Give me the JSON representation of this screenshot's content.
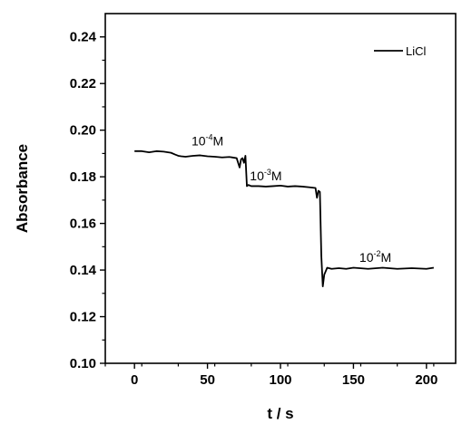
{
  "chart_data": {
    "type": "line",
    "title": "",
    "xlabel": "t / s",
    "ylabel": "Absorbance",
    "xlim": [
      -20,
      220
    ],
    "ylim": [
      0.1,
      0.25
    ],
    "xticks": [
      0,
      50,
      100,
      150,
      200
    ],
    "xtick_labels": [
      "0",
      "50",
      "100",
      "150",
      "200"
    ],
    "yticks": [
      0.1,
      0.12,
      0.14,
      0.16,
      0.18,
      0.2,
      0.22,
      0.24
    ],
    "ytick_labels": [
      "0.10",
      "0.12",
      "0.14",
      "0.16",
      "0.18",
      "0.20",
      "0.22",
      "0.24"
    ],
    "grid": false,
    "legend_position": "top-right",
    "series": [
      {
        "name": "LiCl",
        "color": "#000000",
        "x": [
          0,
          5,
          10,
          15,
          20,
          25,
          28,
          30,
          32,
          35,
          40,
          45,
          50,
          55,
          60,
          65,
          70,
          72,
          73,
          74,
          75,
          76,
          77,
          78,
          80,
          85,
          90,
          95,
          100,
          105,
          110,
          115,
          120,
          124,
          125,
          126,
          127,
          128,
          129,
          130,
          132,
          135,
          140,
          145,
          150,
          160,
          170,
          180,
          190,
          200,
          205
        ],
        "y": [
          0.191,
          0.191,
          0.1905,
          0.191,
          0.1908,
          0.1903,
          0.1895,
          0.189,
          0.1888,
          0.1886,
          0.189,
          0.1892,
          0.1888,
          0.1886,
          0.1883,
          0.1885,
          0.188,
          0.184,
          0.1875,
          0.188,
          0.186,
          0.189,
          0.176,
          0.1765,
          0.176,
          0.176,
          0.1758,
          0.176,
          0.1762,
          0.1758,
          0.176,
          0.1758,
          0.1755,
          0.1752,
          0.171,
          0.174,
          0.1735,
          0.146,
          0.133,
          0.138,
          0.141,
          0.1405,
          0.1408,
          0.1405,
          0.141,
          0.1405,
          0.141,
          0.1405,
          0.1408,
          0.1405,
          0.141
        ]
      }
    ],
    "annotations": [
      {
        "base": "10",
        "exp": "-4",
        "unit": "M",
        "x": 50,
        "y": 0.1935
      },
      {
        "base": "10",
        "exp": "-3",
        "unit": "M",
        "x": 90,
        "y": 0.1785
      },
      {
        "base": "10",
        "exp": "-2",
        "unit": "M",
        "x": 165,
        "y": 0.1435
      }
    ]
  }
}
